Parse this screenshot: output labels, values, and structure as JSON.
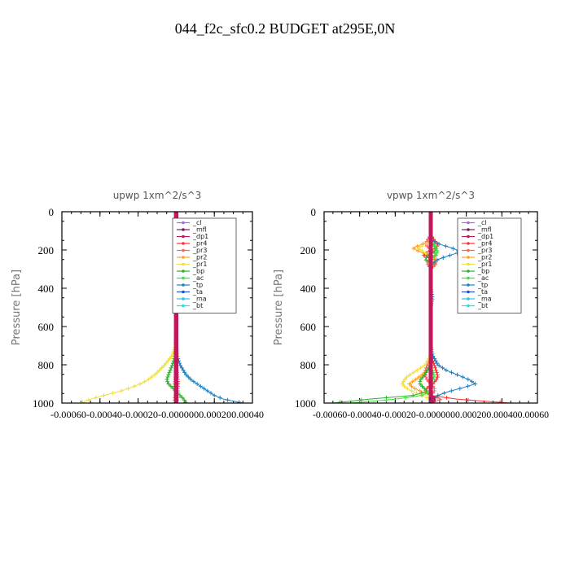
{
  "figure": {
    "title": "044_f2c_sfc0.2  BUDGET at295E,0N"
  },
  "colors": {
    "_cl": "#a070e0",
    "_mfl": "#7a1a5a",
    "_dp1": "#c0185a",
    "_pr4": "#ff3030",
    "_pr3": "#ff6060",
    "_pr2": "#ffa020",
    "_pr1": "#f0e040",
    "_bp": "#30b030",
    "_ac": "#40e040",
    "_tp": "#2080c0",
    "_ta": "#2050d0",
    "_ma": "#30c0e0",
    "_bt": "#20e0e0"
  },
  "chart_data": [
    {
      "type": "line",
      "title": "upwp   1xm^2/s^3",
      "ylabel": "Pressure [hPa]",
      "ylim": [
        1000,
        0
      ],
      "y_inverted": true,
      "xlim": [
        -0.0006,
        0.0004
      ],
      "yticks": [
        "0",
        "200",
        "400",
        "600",
        "800",
        "1000"
      ],
      "xticks": [
        "-0.00060",
        "-0.00040",
        "-0.00020",
        "0.000000",
        "0.00020",
        "0.00040"
      ],
      "xticks_rendered": "-0.00060-0.00040-0.00020-0.0000000.000200.00040",
      "legend": [
        "_cl",
        "_mfl",
        "_dp1",
        "_pr4",
        "_pr3",
        "_pr2",
        "_pr1",
        "_bp",
        "_ac",
        "_tp",
        "_ta",
        "_ma",
        "_bt"
      ],
      "legend_position": "upper-right",
      "pressure": [
        0,
        100,
        180,
        200,
        220,
        300,
        400,
        500,
        600,
        700,
        750,
        800,
        850,
        880,
        900,
        920,
        940,
        960,
        980,
        1000
      ],
      "series": [
        {
          "name": "_cl",
          "values": [
            0,
            0,
            0,
            0,
            0,
            0,
            0,
            0,
            0,
            0,
            0,
            0,
            0,
            0,
            0,
            0,
            0,
            0,
            0,
            0
          ]
        },
        {
          "name": "_mfl",
          "values": [
            0,
            0,
            0,
            0,
            0,
            0,
            0,
            0,
            0,
            0,
            0,
            0,
            0,
            0,
            0,
            0,
            0,
            0,
            0,
            0
          ]
        },
        {
          "name": "_dp1",
          "values": [
            0,
            0,
            0,
            0,
            0,
            0,
            0,
            0,
            0,
            0,
            0,
            0,
            0,
            0,
            0,
            0,
            0,
            0,
            0,
            0
          ]
        },
        {
          "name": "_pr4",
          "values": [
            0,
            0,
            0,
            0,
            0,
            0,
            0,
            0,
            0,
            0,
            0,
            0,
            5e-06,
            8e-06,
            1e-05,
            8e-06,
            5e-06,
            -3e-06,
            -8e-06,
            0
          ]
        },
        {
          "name": "_pr3",
          "values": [
            0,
            0,
            0,
            0,
            0,
            0,
            0,
            0,
            0,
            0,
            0,
            0,
            -4e-06,
            -6e-06,
            -8e-06,
            -6e-06,
            -4e-06,
            0,
            4e-06,
            0
          ]
        },
        {
          "name": "_pr2",
          "values": [
            0,
            0,
            4e-06,
            8e-06,
            4e-06,
            0,
            0,
            0,
            0,
            0,
            0,
            0,
            0,
            0,
            0,
            0,
            0,
            0,
            0,
            0
          ]
        },
        {
          "name": "_pr1",
          "values": [
            0,
            0,
            0,
            0,
            0,
            0,
            0,
            0,
            0,
            -5e-06,
            -2e-05,
            -6e-05,
            -0.00011,
            -0.00015,
            -0.00019,
            -0.00024,
            -0.0003,
            -0.00038,
            -0.00045,
            -0.0005
          ]
        },
        {
          "name": "_bp",
          "values": [
            0,
            0,
            0,
            0,
            0,
            0,
            0,
            0,
            0,
            0,
            -5e-06,
            -2e-05,
            -4e-05,
            -5e-05,
            -4e-05,
            -2e-05,
            0,
            2e-05,
            4e-05,
            5e-05
          ]
        },
        {
          "name": "_ac",
          "values": [
            0,
            0,
            0,
            0,
            0,
            0,
            0,
            0,
            0,
            0,
            0,
            0,
            0,
            0,
            0,
            5e-06,
            1e-05,
            1e-05,
            5e-06,
            0
          ]
        },
        {
          "name": "_tp",
          "values": [
            0,
            0,
            -4e-06,
            -1e-05,
            -4e-06,
            0,
            0,
            0,
            0,
            0,
            4e-06,
            2e-05,
            5e-05,
            8e-05,
            0.00011,
            0.00014,
            0.00017,
            0.0002,
            0.00025,
            0.00035
          ]
        },
        {
          "name": "_ta",
          "values": [
            0,
            0,
            0,
            0,
            0,
            0,
            0,
            0,
            0,
            0,
            0,
            0,
            0,
            0,
            0,
            0,
            0,
            0,
            0,
            0
          ]
        },
        {
          "name": "_ma",
          "values": [
            0,
            0,
            0,
            0,
            0,
            0,
            0,
            0,
            0,
            0,
            0,
            0,
            0,
            0,
            0,
            0,
            0,
            0,
            0,
            0
          ]
        },
        {
          "name": "_bt",
          "values": [
            0,
            0,
            0,
            0,
            0,
            0,
            0,
            0,
            0,
            0,
            0,
            0,
            0,
            0,
            0,
            0,
            0,
            0,
            0,
            0
          ]
        }
      ]
    },
    {
      "type": "line",
      "title": "vpwp   1xm^2/s^3",
      "ylabel": "Pressure [hPa]",
      "ylim": [
        1000,
        0
      ],
      "y_inverted": true,
      "xlim": [
        -0.0006,
        0.0006
      ],
      "yticks": [
        "0",
        "200",
        "400",
        "600",
        "800",
        "1000"
      ],
      "xticks": [
        "-0.00060",
        "-0.00040",
        "-0.00020",
        "0.000000",
        "0.00020",
        "0.00040",
        "0.00060"
      ],
      "xticks_rendered": "-0.00060-0.00040-0.00020-0.0000000.000200.000400.00060",
      "legend": [
        "_cl",
        "_mfl",
        "_dp1",
        "_pr4",
        "_pr3",
        "_pr2",
        "_pr1",
        "_bp",
        "_ac",
        "_tp",
        "_ta",
        "_ma",
        "_bt"
      ],
      "legend_position": "upper-right",
      "pressure": [
        0,
        120,
        150,
        170,
        190,
        210,
        230,
        250,
        270,
        300,
        400,
        450,
        500,
        600,
        700,
        750,
        800,
        830,
        860,
        880,
        900,
        920,
        940,
        960,
        980,
        1000
      ],
      "series": [
        {
          "name": "_cl",
          "values": [
            0,
            0,
            0,
            0,
            0,
            0,
            0,
            0,
            0,
            0,
            0,
            0,
            0,
            0,
            0,
            0,
            0,
            0,
            0,
            0,
            0,
            0,
            0,
            0,
            0,
            0
          ]
        },
        {
          "name": "_mfl",
          "values": [
            0,
            0,
            0,
            0,
            0,
            0,
            0,
            0,
            0,
            0,
            0,
            0,
            0,
            0,
            0,
            0,
            0,
            0,
            0,
            0,
            0,
            0,
            0,
            0,
            0,
            0
          ]
        },
        {
          "name": "_dp1",
          "values": [
            0,
            0,
            0,
            0,
            0,
            0,
            0,
            0,
            0,
            0,
            0,
            0,
            0,
            0,
            0,
            0,
            0,
            0,
            0,
            0,
            0,
            0,
            0,
            0,
            2e-05,
            0
          ]
        },
        {
          "name": "_pr4",
          "values": [
            0,
            0,
            2e-05,
            4e-05,
            3e-05,
            -2e-05,
            -4e-05,
            2e-05,
            3e-05,
            0,
            0,
            0,
            0,
            0,
            0,
            0,
            2e-05,
            3e-05,
            4e-05,
            3e-05,
            1e-05,
            -2e-05,
            -3e-05,
            0,
            0.00015,
            0.00045
          ]
        },
        {
          "name": "_pr3",
          "values": [
            0,
            0,
            -2e-05,
            -3e-05,
            -1e-05,
            2e-05,
            3e-05,
            -1e-05,
            -2e-05,
            0,
            0,
            0,
            0,
            0,
            0,
            0,
            -2e-05,
            -3e-05,
            -3e-05,
            -2e-05,
            0,
            2e-05,
            2e-05,
            0,
            6e-05,
            0
          ]
        },
        {
          "name": "_pr2",
          "values": [
            0,
            0,
            1e-05,
            -5e-05,
            -0.0001,
            -6e-05,
            0,
            3e-05,
            2e-05,
            0,
            0,
            0,
            0,
            0,
            0,
            0,
            0,
            -2e-05,
            -6e-05,
            -9e-05,
            -0.00012,
            -0.0001,
            -5e-05,
            0,
            0,
            0
          ]
        },
        {
          "name": "_pr1",
          "values": [
            0,
            0,
            1e-05,
            -3e-05,
            -7e-05,
            -4e-05,
            0,
            1e-05,
            0,
            0,
            0,
            0,
            0,
            0,
            0,
            0,
            -3e-05,
            -8e-05,
            -0.00013,
            -0.00015,
            -0.00016,
            -0.00014,
            -0.0001,
            -5e-05,
            0,
            0
          ]
        },
        {
          "name": "_bp",
          "values": [
            0,
            0,
            0,
            1e-05,
            3e-05,
            2e-05,
            -2e-05,
            -3e-05,
            0,
            0,
            0,
            0,
            0,
            0,
            0,
            0,
            0,
            -2e-05,
            -4e-05,
            -6e-05,
            -6e-05,
            -4e-05,
            -2e-05,
            -0.0001,
            -0.00035,
            -0.00055
          ]
        },
        {
          "name": "_ac",
          "values": [
            0,
            0,
            0,
            2e-05,
            3e-05,
            4e-05,
            2e-05,
            0,
            0,
            0,
            0,
            0,
            0,
            0,
            0,
            0,
            0,
            1e-05,
            2e-05,
            1e-05,
            0,
            0,
            0,
            -5e-05,
            -0.0002,
            -0.00045
          ]
        },
        {
          "name": "_tp",
          "values": [
            0,
            0,
            1e-05,
            5e-05,
            0.00012,
            0.00017,
            0.0001,
            4e-05,
            1e-05,
            0,
            0,
            1e-05,
            0,
            0,
            0,
            1e-05,
            4e-05,
            9e-05,
            0.00017,
            0.00022,
            0.00025,
            0.00018,
            0.0001,
            4e-05,
            1e-05,
            0
          ]
        },
        {
          "name": "_ta",
          "values": [
            0,
            0,
            0,
            0,
            0,
            0,
            0,
            0,
            0,
            0,
            0,
            0,
            0,
            0,
            0,
            0,
            0,
            0,
            0,
            0,
            0,
            0,
            0,
            0,
            0,
            0
          ]
        },
        {
          "name": "_ma",
          "values": [
            0,
            0,
            0,
            0,
            0,
            0,
            0,
            0,
            0,
            0,
            0,
            0,
            0,
            0,
            0,
            0,
            0,
            0,
            0,
            0,
            0,
            0,
            0,
            0,
            0,
            0
          ]
        },
        {
          "name": "_bt",
          "values": [
            0,
            0,
            0,
            0,
            0,
            0,
            0,
            0,
            0,
            0,
            0,
            0,
            0,
            0,
            0,
            0,
            0,
            0,
            0,
            0,
            0,
            0,
            0,
            0,
            0,
            0
          ]
        }
      ]
    }
  ]
}
